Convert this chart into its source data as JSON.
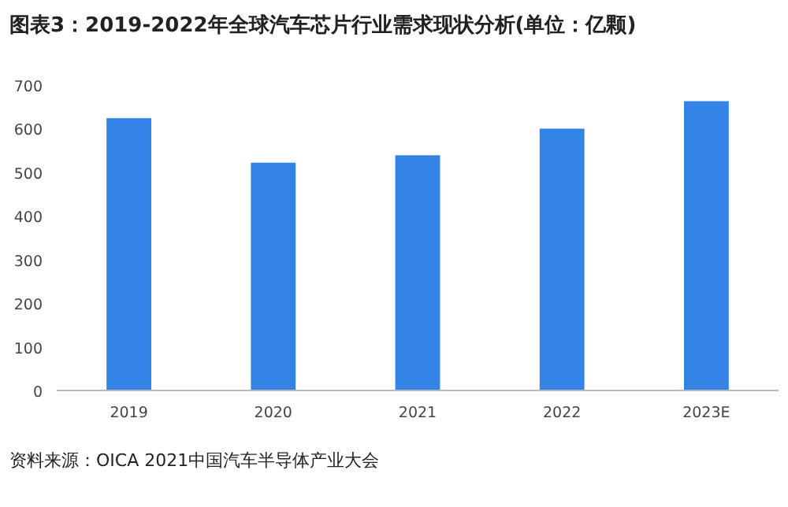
{
  "chart_data": {
    "type": "bar",
    "title": "图表3：2019-2022年全球汽车芯片行业需求现状分析(单位：亿颗)",
    "categories": [
      "2019",
      "2020",
      "2021",
      "2022",
      "2023E"
    ],
    "values": [
      624,
      522,
      539,
      600,
      663
    ],
    "color": "#3382e6",
    "ylim": [
      0,
      700
    ],
    "yticks": [
      0,
      100,
      200,
      300,
      400,
      500,
      600,
      700
    ],
    "annotations": [
      "资料来源：OICA 2021中国汽车半导体产业大会"
    ]
  }
}
